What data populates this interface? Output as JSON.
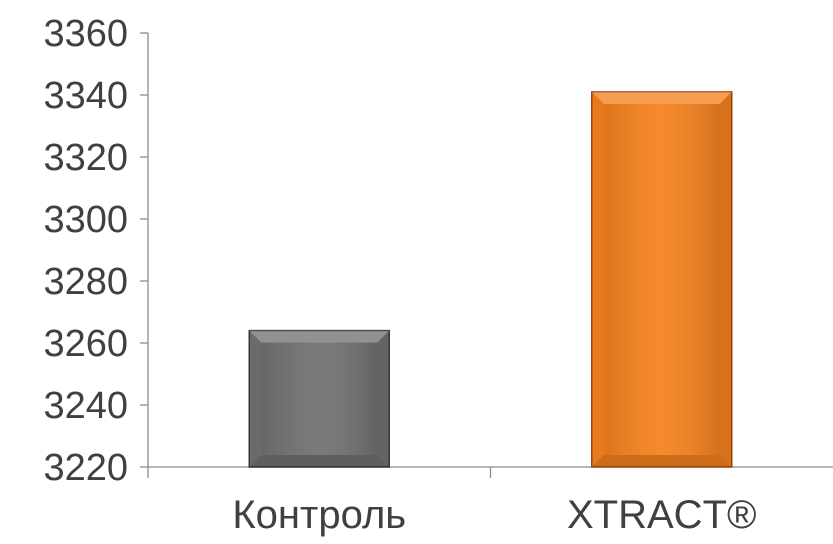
{
  "chart_data": {
    "type": "bar",
    "categories": [
      "Контроль",
      "XTRACT®"
    ],
    "values": [
      3264,
      3341
    ],
    "title": "",
    "xlabel": "",
    "ylabel": "",
    "ylim": [
      3220,
      3360
    ],
    "yticks": [
      "3220",
      "3240",
      "3260",
      "3280",
      "3300",
      "3320",
      "3340",
      "3360"
    ],
    "bar_colors": [
      "#727272",
      "#f5821f"
    ],
    "bar_edge_colors": [
      "#3a3a3a",
      "#a04a10"
    ],
    "grid": false,
    "legend": "none"
  }
}
